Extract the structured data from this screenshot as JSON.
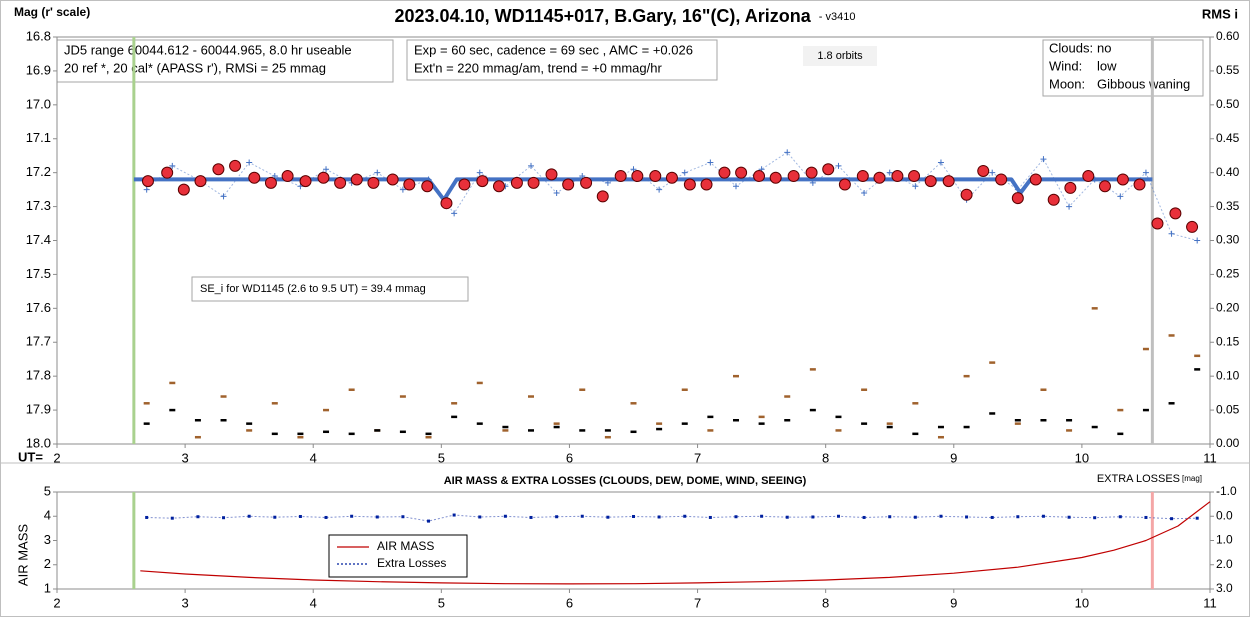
{
  "chart_data": [
    {
      "type": "line",
      "title": "2023.04.10, WD1145+017, B.Gary, 16\"(C), Arizona",
      "subtitle": "- v3410",
      "ylabel": "Mag (r' scale)",
      "y2label": "RMS i",
      "xlabel": "UT=",
      "xlim": [
        2,
        11
      ],
      "xticks": [
        2,
        3,
        4,
        5,
        6,
        7,
        8,
        9,
        10,
        11
      ],
      "ylim": [
        16.8,
        18.0
      ],
      "y_reversed": true,
      "yticks": [
        16.8,
        16.9,
        {
          "value": 17,
          "label": "17.0"
        },
        17.1,
        17.2,
        17.3,
        17.4,
        17.5,
        17.6,
        17.7,
        17.8,
        17.9,
        {
          "value": 18,
          "label": "18.0"
        }
      ],
      "y2lim": [
        0,
        0.6
      ],
      "y2ticks": [
        {
          "value": 0,
          "label": "0.00"
        },
        0.05,
        {
          "value": 0.1,
          "label": "0.10"
        },
        0.15,
        {
          "value": 0.2,
          "label": "0.20"
        },
        0.25,
        {
          "value": 0.3,
          "label": "0.30"
        },
        0.35,
        {
          "value": 0.4,
          "label": "0.40"
        },
        0.45,
        {
          "value": 0.5,
          "label": "0.50"
        },
        0.55,
        {
          "value": 0.6,
          "label": "0.60"
        }
      ],
      "annotations": [
        "JD5 range 60044.612 - 60044.965, 8.0 hr useable",
        "20 ref *, 20 cal*  (APASS r'), RMSi = 25 mmag",
        "Exp = 60 sec, cadence = 69 sec , AMC = +0.026",
        "Ext'n = 220 mmag/am, trend = +0 mmag/hr",
        "1.8 orbits",
        "SE_i for WD1145 (2.6 to 9.5 UT) = 39.4 mmag"
      ],
      "conditions": [
        {
          "label": "Clouds:",
          "value": "no"
        },
        {
          "label": "Wind:",
          "value": "low"
        },
        {
          "label": "Moon:",
          "value": "Gibbous waning"
        }
      ],
      "vlines": [
        {
          "x": 2.6,
          "color": "#a9d18e"
        },
        {
          "x": 10.55,
          "color": "#bfbfbf"
        }
      ],
      "series": [
        {
          "marker": "cross",
          "color": "#4472c4",
          "x": [
            2.7,
            2.9,
            3.1,
            3.3,
            3.5,
            3.7,
            3.9,
            4.1,
            4.3,
            4.5,
            4.7,
            4.9,
            5.1,
            5.3,
            5.5,
            5.7,
            5.9,
            6.1,
            6.3,
            6.5,
            6.7,
            6.9,
            7.1,
            7.3,
            7.5,
            7.7,
            7.9,
            8.1,
            8.3,
            8.5,
            8.7,
            8.9,
            9.1,
            9.3,
            9.5,
            9.7,
            9.9,
            10.1,
            10.3,
            10.5,
            10.7,
            10.9
          ],
          "values": [
            17.25,
            17.18,
            17.22,
            17.27,
            17.17,
            17.21,
            17.24,
            17.19,
            17.23,
            17.2,
            17.25,
            17.22,
            17.32,
            17.2,
            17.24,
            17.18,
            17.26,
            17.21,
            17.23,
            17.19,
            17.25,
            17.2,
            17.17,
            17.24,
            17.19,
            17.14,
            17.23,
            17.18,
            17.26,
            17.2,
            17.24,
            17.17,
            17.28,
            17.2,
            17.25,
            17.16,
            17.3,
            17.22,
            17.27,
            17.2,
            17.38,
            17.4
          ]
        },
        {
          "marker": "line",
          "color": "#4472c4",
          "x": [
            2.6,
            4.9,
            5.02,
            5.12,
            9.45,
            9.52,
            9.6,
            10.55
          ],
          "values": [
            17.22,
            17.22,
            17.28,
            17.22,
            17.22,
            17.26,
            17.22,
            17.22
          ]
        },
        {
          "marker": "circle",
          "color": "#e8303a",
          "x": [
            2.71,
            2.86,
            2.99,
            3.12,
            3.26,
            3.39,
            3.54,
            3.67,
            3.8,
            3.94,
            4.08,
            4.21,
            4.34,
            4.47,
            4.62,
            4.75,
            4.89,
            5.04,
            5.18,
            5.32,
            5.45,
            5.59,
            5.72,
            5.86,
            5.99,
            6.13,
            6.26,
            6.4,
            6.53,
            6.67,
            6.8,
            6.94,
            7.07,
            7.21,
            7.34,
            7.48,
            7.61,
            7.75,
            7.89,
            8.02,
            8.15,
            8.29,
            8.42,
            8.56,
            8.69,
            8.82,
            8.96,
            9.1,
            9.23,
            9.37,
            9.5,
            9.64,
            9.78,
            9.91,
            10.05,
            10.18,
            10.32,
            10.45,
            10.59,
            10.73,
            10.86
          ],
          "values": [
            17.225,
            17.2,
            17.25,
            17.225,
            17.19,
            17.18,
            17.215,
            17.23,
            17.21,
            17.225,
            17.215,
            17.23,
            17.22,
            17.23,
            17.22,
            17.235,
            17.24,
            17.29,
            17.235,
            17.225,
            17.24,
            17.23,
            17.23,
            17.205,
            17.235,
            17.23,
            17.27,
            17.21,
            17.21,
            17.21,
            17.215,
            17.235,
            17.235,
            17.2,
            17.2,
            17.21,
            17.215,
            17.21,
            17.2,
            17.19,
            17.235,
            17.21,
            17.215,
            17.21,
            17.21,
            17.225,
            17.225,
            17.265,
            17.195,
            17.22,
            17.275,
            17.22,
            17.28,
            17.245,
            17.21,
            17.24,
            17.22,
            17.235,
            17.35,
            17.32,
            17.36
          ]
        },
        {
          "marker": "dash",
          "color": "#a0622d",
          "axis": "y2",
          "x": [
            2.7,
            2.9,
            3.1,
            3.3,
            3.5,
            3.7,
            3.9,
            4.1,
            4.3,
            4.5,
            4.7,
            4.9,
            5.1,
            5.3,
            5.5,
            5.7,
            5.9,
            6.1,
            6.3,
            6.5,
            6.7,
            6.9,
            7.1,
            7.3,
            7.5,
            7.7,
            7.9,
            8.1,
            8.3,
            8.5,
            8.7,
            8.9,
            9.1,
            9.3,
            9.5,
            9.7,
            9.9,
            10.1,
            10.3,
            10.5,
            10.7,
            10.9
          ],
          "values": [
            0.06,
            0.09,
            0.01,
            0.07,
            0.02,
            0.06,
            0.01,
            0.05,
            0.08,
            0.02,
            0.07,
            0.01,
            0.06,
            0.09,
            0.02,
            0.07,
            0.03,
            0.08,
            0.01,
            0.06,
            0.03,
            0.08,
            0.02,
            0.1,
            0.04,
            0.07,
            0.11,
            0.02,
            0.08,
            0.03,
            0.06,
            0.01,
            0.1,
            0.12,
            0.03,
            0.08,
            0.02,
            0.2,
            0.05,
            0.14,
            0.16,
            0.13
          ]
        },
        {
          "marker": "dash",
          "color": "#000000",
          "axis": "y2",
          "x": [
            2.7,
            2.9,
            3.1,
            3.3,
            3.5,
            3.7,
            3.9,
            4.1,
            4.3,
            4.5,
            4.7,
            4.9,
            5.1,
            5.3,
            5.5,
            5.7,
            5.9,
            6.1,
            6.3,
            6.5,
            6.7,
            6.9,
            7.1,
            7.3,
            7.5,
            7.7,
            7.9,
            8.1,
            8.3,
            8.5,
            8.7,
            8.9,
            9.1,
            9.3,
            9.5,
            9.7,
            9.9,
            10.1,
            10.3,
            10.5,
            10.7,
            10.9
          ],
          "values": [
            0.03,
            0.05,
            0.035,
            0.035,
            0.03,
            0.015,
            0.015,
            0.018,
            0.015,
            0.02,
            0.018,
            0.015,
            0.04,
            0.03,
            0.025,
            0.02,
            0.025,
            0.02,
            0.02,
            0.018,
            0.022,
            0.03,
            0.04,
            0.035,
            0.03,
            0.035,
            0.05,
            0.04,
            0.03,
            0.025,
            0.015,
            0.025,
            0.025,
            0.045,
            0.035,
            0.035,
            0.035,
            0.025,
            0.015,
            0.05,
            0.06,
            0.11
          ]
        }
      ]
    },
    {
      "type": "line",
      "title": "AIR MASS & EXTRA LOSSES (CLOUDS, DEW, DOME, WIND, SEEING)",
      "ylabel": "AIR MASS",
      "y2label": "EXTRA LOSSES",
      "y2unit": "[mag]",
      "xlim": [
        2,
        11
      ],
      "xticks": [
        2,
        3,
        4,
        5,
        6,
        7,
        8,
        9,
        10,
        11
      ],
      "ylim": [
        1,
        5
      ],
      "yticks": [
        1,
        2,
        3,
        4,
        5
      ],
      "y2lim": [
        -1,
        3
      ],
      "y2_reversed": true,
      "y2ticks": [
        {
          "value": -1,
          "label": "-1.0"
        },
        {
          "value": 0,
          "label": "0.0"
        },
        {
          "value": 1,
          "label": "1.0"
        },
        {
          "value": 2,
          "label": "2.0"
        },
        {
          "value": 3,
          "label": "3.0"
        }
      ],
      "legend": "lower left",
      "vlines": [
        {
          "x": 2.6,
          "color": "#a9d18e"
        },
        {
          "x": 10.55,
          "color": "#f4a6a6"
        }
      ],
      "series": [
        {
          "name": "AIR MASS",
          "marker": "line",
          "color": "#c00000",
          "x": [
            2.65,
            3,
            3.5,
            4,
            4.5,
            5,
            5.5,
            6,
            6.5,
            7,
            7.5,
            8,
            8.5,
            9,
            9.5,
            10,
            10.25,
            10.5,
            10.75,
            11
          ],
          "values": [
            1.75,
            1.62,
            1.48,
            1.37,
            1.3,
            1.25,
            1.22,
            1.21,
            1.22,
            1.25,
            1.3,
            1.37,
            1.48,
            1.65,
            1.9,
            2.3,
            2.6,
            3.0,
            3.6,
            4.6
          ]
        },
        {
          "name": "Extra Losses",
          "marker": "dot",
          "color": "#00209f",
          "axis": "y2",
          "x": [
            2.7,
            2.9,
            3.1,
            3.3,
            3.5,
            3.7,
            3.9,
            4.1,
            4.3,
            4.5,
            4.7,
            4.9,
            5.1,
            5.3,
            5.5,
            5.7,
            5.9,
            6.1,
            6.3,
            6.5,
            6.7,
            6.9,
            7.1,
            7.3,
            7.5,
            7.7,
            7.9,
            8.1,
            8.3,
            8.5,
            8.7,
            8.9,
            9.1,
            9.3,
            9.5,
            9.7,
            9.9,
            10.1,
            10.3,
            10.5,
            10.7,
            10.9
          ],
          "values": [
            0.05,
            0.08,
            0.02,
            0.06,
            0.0,
            0.04,
            0.01,
            0.05,
            0.0,
            0.03,
            0.02,
            0.2,
            -0.05,
            0.03,
            0.0,
            0.05,
            0.02,
            0.0,
            0.04,
            0.01,
            0.03,
            0.0,
            0.05,
            0.02,
            0.0,
            0.04,
            0.03,
            0.0,
            0.05,
            0.02,
            0.04,
            0.0,
            0.03,
            0.05,
            0.02,
            0.0,
            0.04,
            0.06,
            0.02,
            0.05,
            0.1,
            0.08
          ]
        }
      ]
    }
  ]
}
